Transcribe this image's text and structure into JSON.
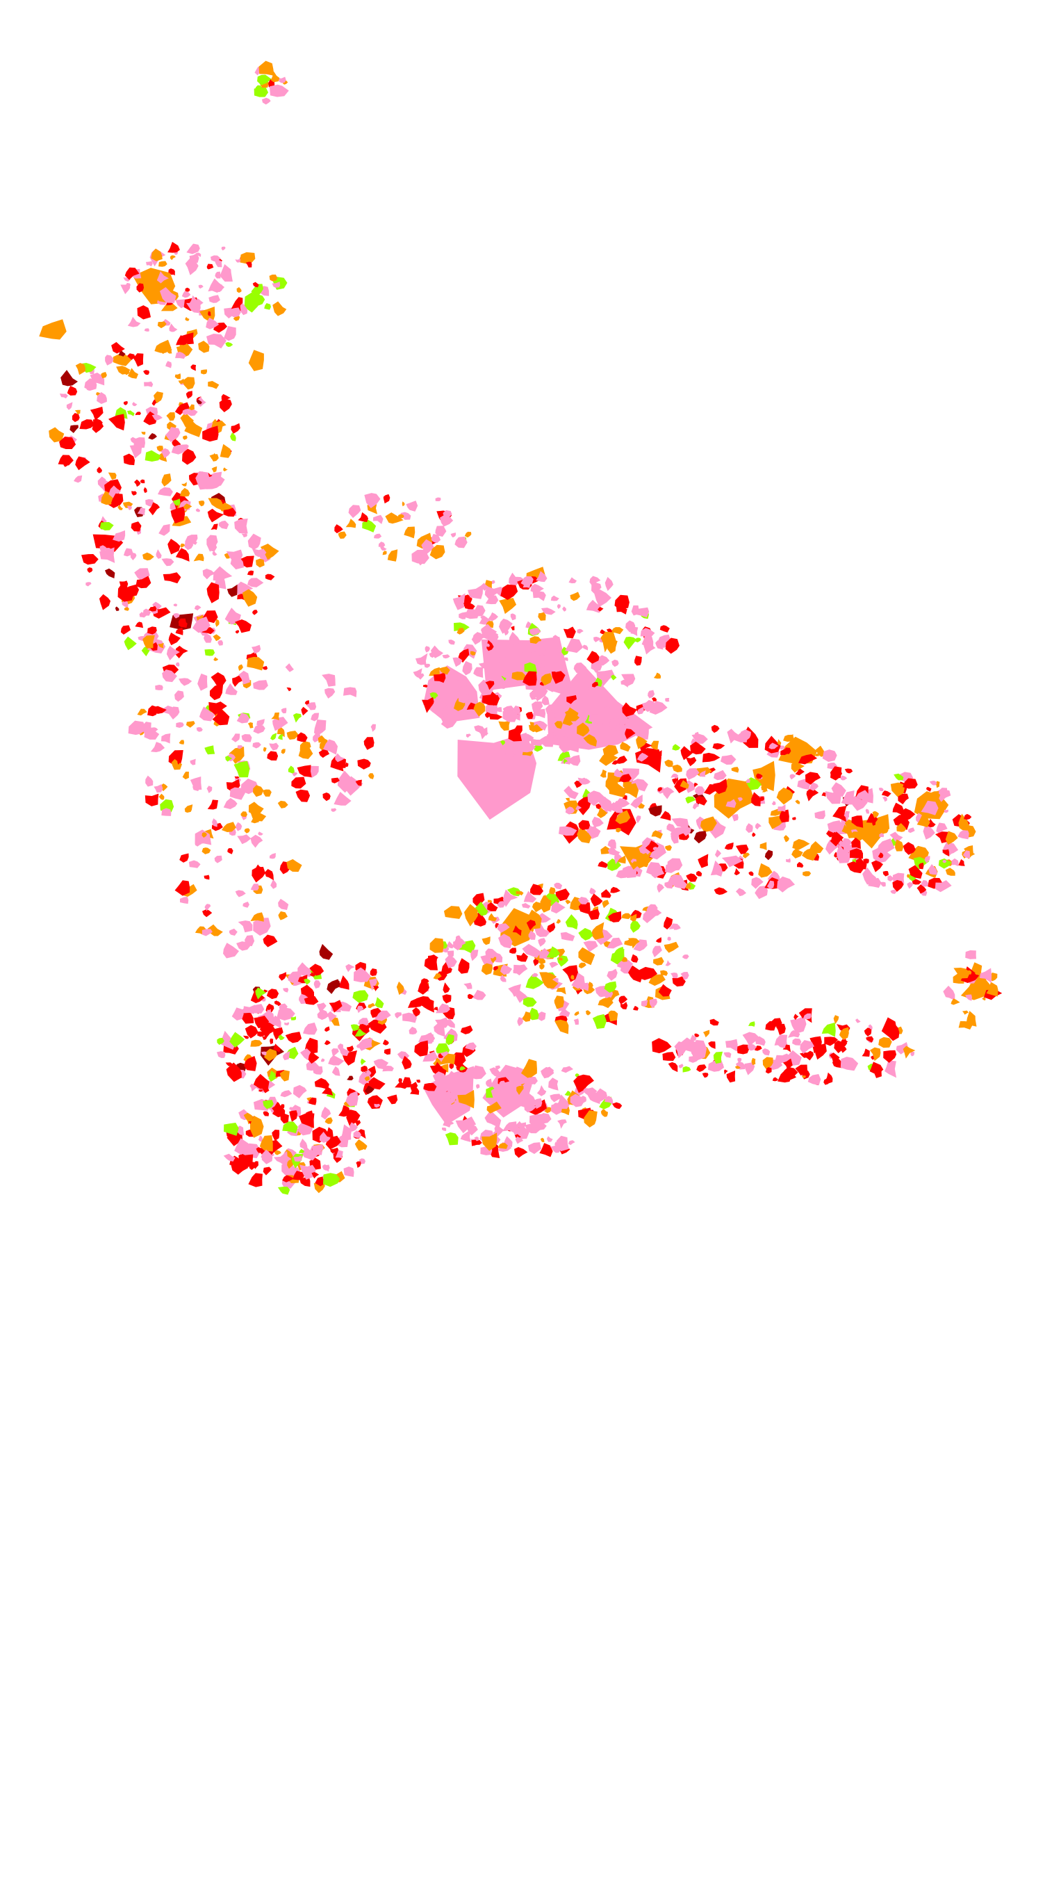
{
  "map": {
    "background": "#FFFFFF",
    "land_cover_classes": [
      {
        "color": "#FF99CC"
      },
      {
        "color": "#FF0000"
      },
      {
        "color": "#FF9900"
      },
      {
        "color": "#A50000"
      },
      {
        "color": "#99FF00"
      }
    ]
  }
}
